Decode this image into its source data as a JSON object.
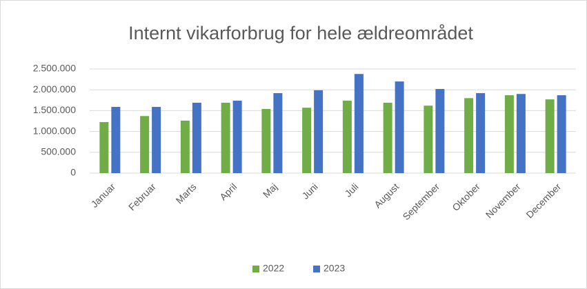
{
  "chart_data": {
    "type": "bar",
    "title": "Internt vikarforbrug for hele ældreområdet",
    "categories": [
      "Januar",
      "Februar",
      "Marts",
      "April",
      "Maj",
      "Juni",
      "Juli",
      "August",
      "September",
      "Oktober",
      "November",
      "December"
    ],
    "series": [
      {
        "name": "2022",
        "color": "#70ad47",
        "values": [
          1225000,
          1370000,
          1260000,
          1690000,
          1540000,
          1570000,
          1740000,
          1690000,
          1620000,
          1800000,
          1870000,
          1770000
        ]
      },
      {
        "name": "2023",
        "color": "#4472c4",
        "values": [
          1590000,
          1590000,
          1690000,
          1740000,
          1920000,
          1990000,
          2380000,
          2200000,
          2020000,
          1920000,
          1900000,
          1870000
        ]
      }
    ],
    "ylim": [
      0,
      2500000
    ],
    "yticks": [
      0,
      {
        "value": 500000,
        "label": "500.000"
      },
      {
        "value": 1000000,
        "label": "1.000.000"
      },
      {
        "value": 1500000,
        "label": "1.500.000"
      },
      {
        "value": 2000000,
        "label": "2.000.000"
      },
      {
        "value": 2500000,
        "label": "2.500.000"
      }
    ],
    "grid": true,
    "legend": "bottom"
  }
}
